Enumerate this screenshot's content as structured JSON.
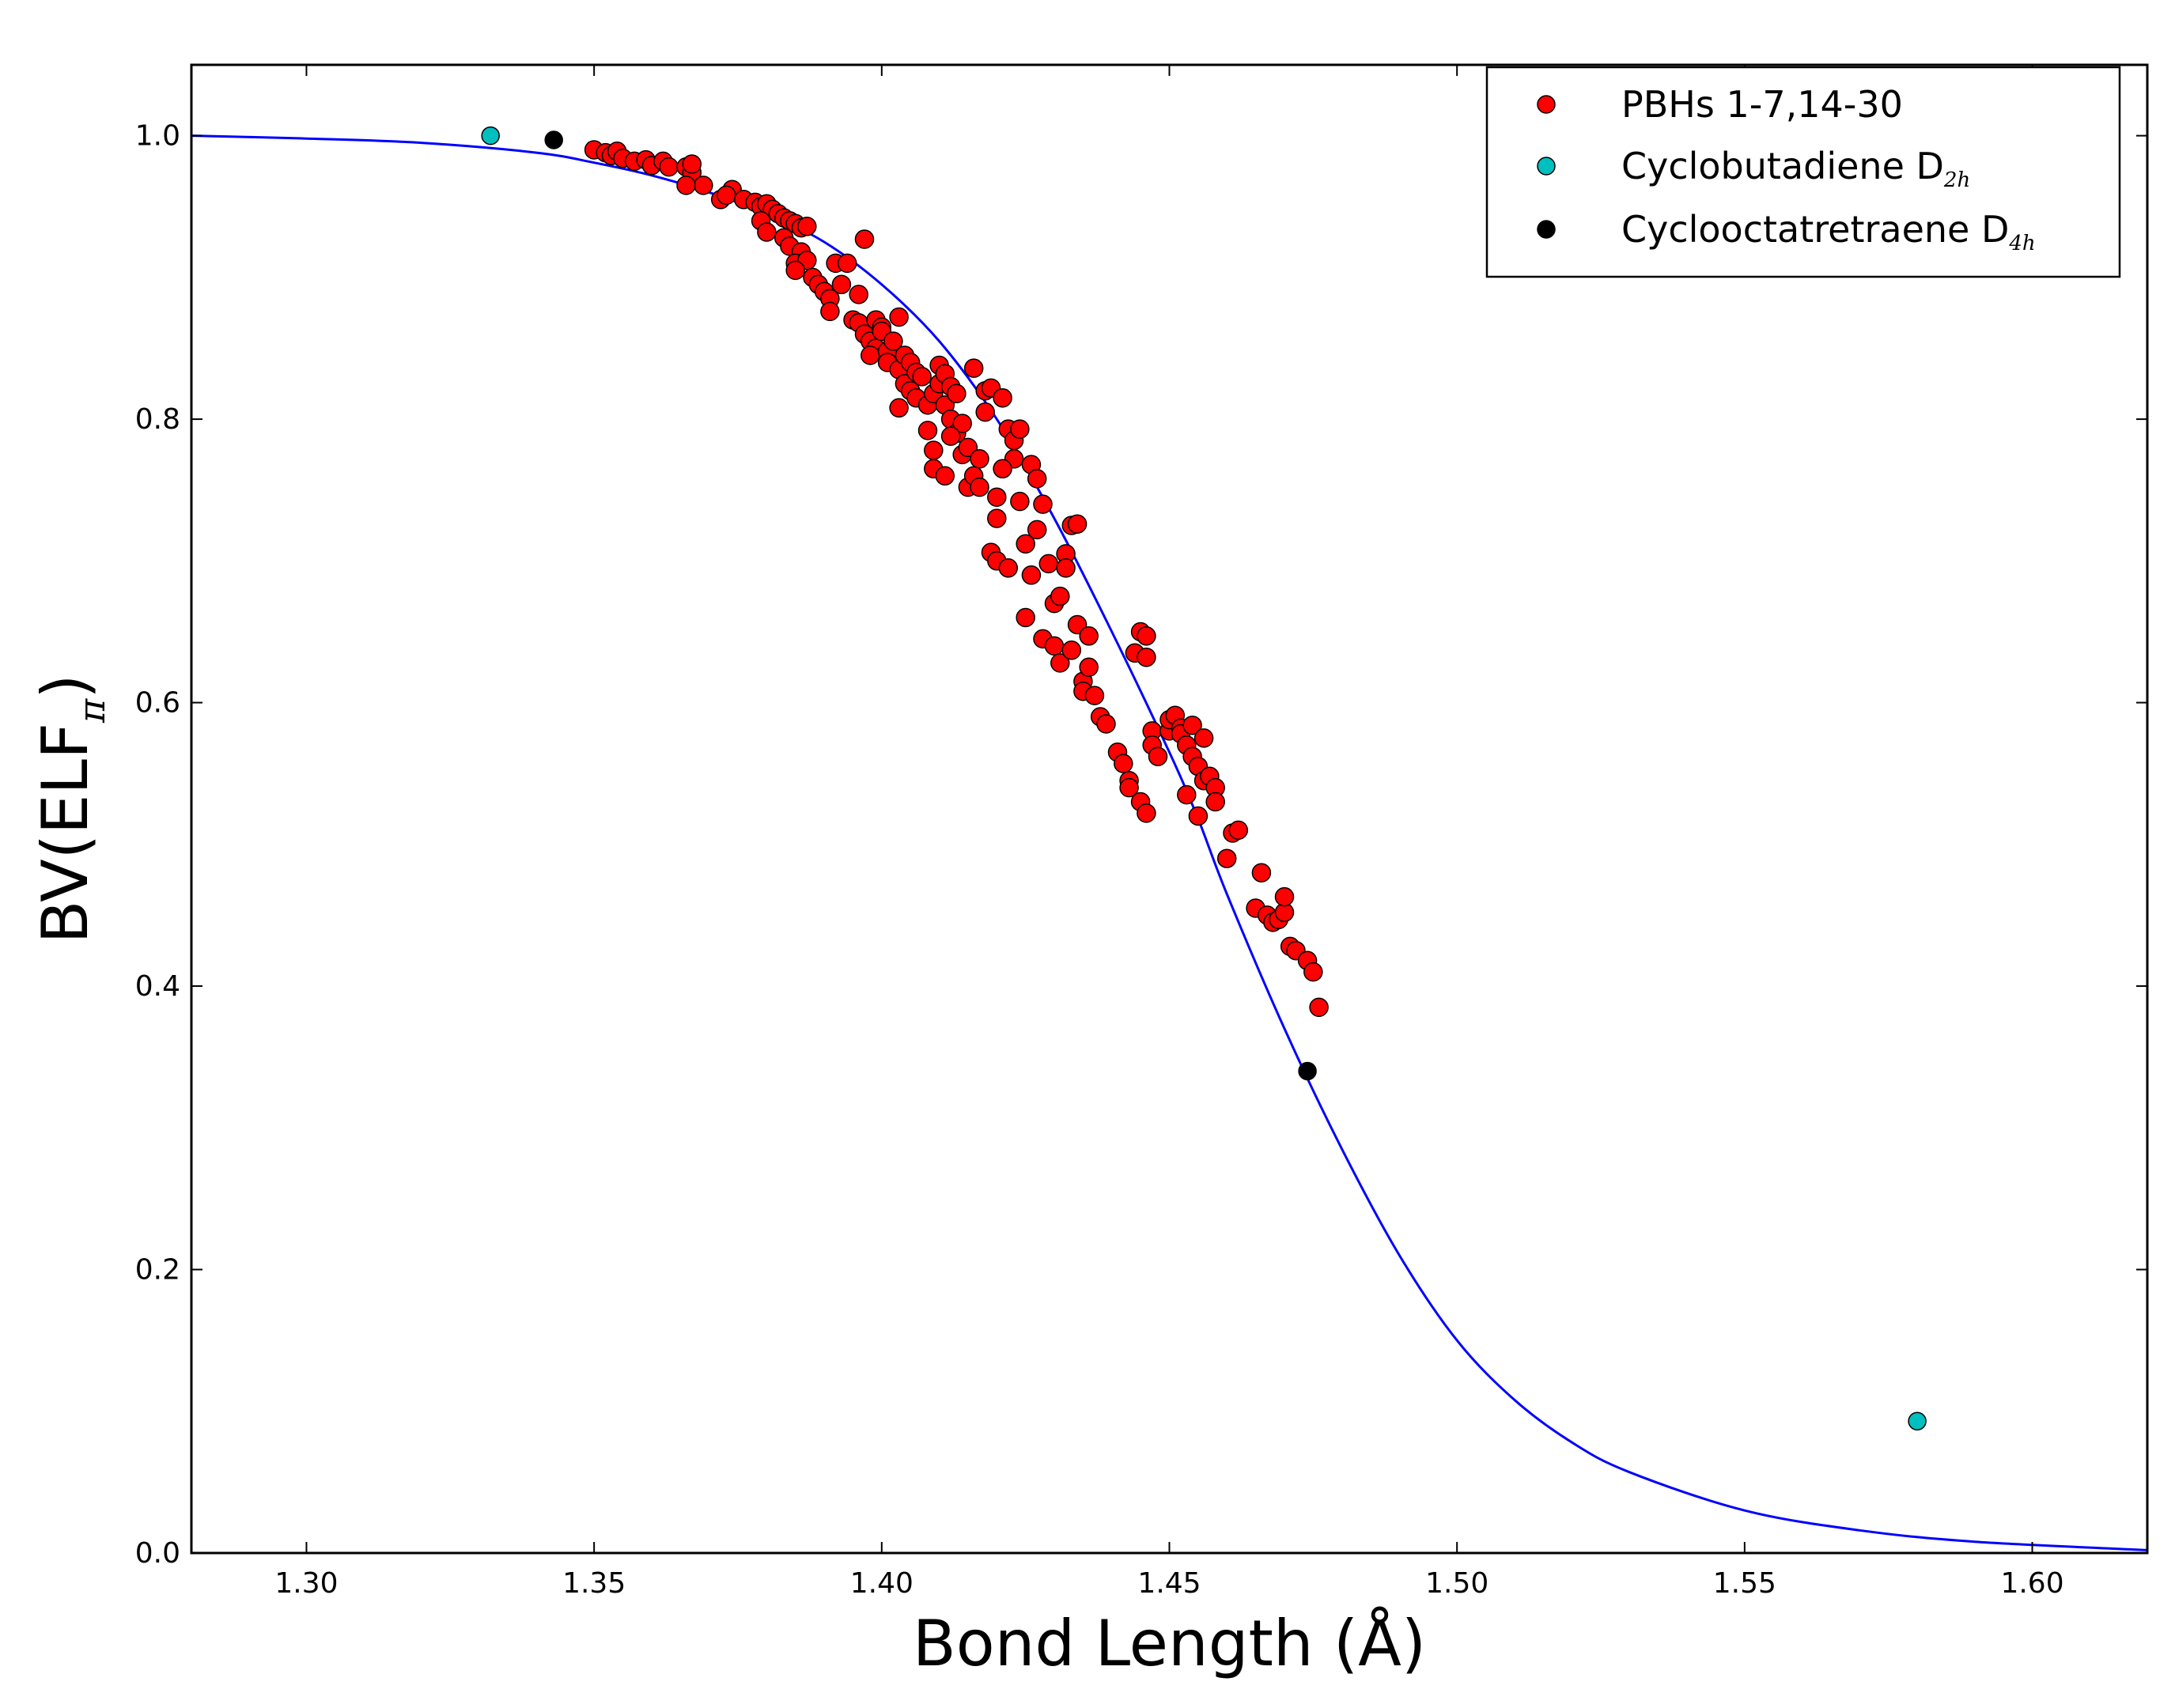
{
  "chart_data": {
    "type": "scatter",
    "xlabel": "Bond Length (Å)",
    "ylabel": "BV(ELF",
    "ylabel_sub": "π",
    "ylabel_close": ")",
    "xlim": [
      1.28,
      1.62
    ],
    "ylim": [
      0.0,
      1.05
    ],
    "x_ticks": [
      "1.30",
      "1.35",
      "1.40",
      "1.45",
      "1.50",
      "1.55",
      "1.60"
    ],
    "y_ticks": [
      "0.0",
      "0.2",
      "0.4",
      "0.6",
      "0.8",
      "1.0"
    ],
    "grid": false,
    "legend_position": "top-right",
    "fit_curve": {
      "color": "#0000ff",
      "x": [
        1.28,
        1.3,
        1.32,
        1.34,
        1.35,
        1.36,
        1.37,
        1.38,
        1.39,
        1.4,
        1.41,
        1.42,
        1.43,
        1.44,
        1.45,
        1.455,
        1.46,
        1.47,
        1.48,
        1.49,
        1.5,
        1.51,
        1.52,
        1.53,
        1.55,
        1.57,
        1.59,
        1.62
      ],
      "y": [
        1.0,
        0.998,
        0.995,
        0.988,
        0.981,
        0.972,
        0.96,
        0.945,
        0.925,
        0.895,
        0.855,
        0.8,
        0.73,
        0.65,
        0.565,
        0.518,
        0.465,
        0.37,
        0.285,
        0.21,
        0.15,
        0.108,
        0.078,
        0.057,
        0.03,
        0.016,
        0.008,
        0.002
      ]
    },
    "series": [
      {
        "name": "PBHs 1-7,14-30",
        "color": "#ff0000",
        "points": [
          [
            1.35,
            0.99
          ],
          [
            1.352,
            0.988
          ],
          [
            1.353,
            0.986
          ],
          [
            1.354,
            0.989
          ],
          [
            1.355,
            0.984
          ],
          [
            1.357,
            0.982
          ],
          [
            1.359,
            0.983
          ],
          [
            1.36,
            0.979
          ],
          [
            1.362,
            0.982
          ],
          [
            1.363,
            0.978
          ],
          [
            1.366,
            0.978
          ],
          [
            1.367,
            0.974
          ],
          [
            1.367,
            0.98
          ],
          [
            1.369,
            0.965
          ],
          [
            1.366,
            0.965
          ],
          [
            1.372,
            0.955
          ],
          [
            1.374,
            0.962
          ],
          [
            1.373,
            0.958
          ],
          [
            1.376,
            0.955
          ],
          [
            1.378,
            0.953
          ],
          [
            1.379,
            0.95
          ],
          [
            1.38,
            0.952
          ],
          [
            1.381,
            0.948
          ],
          [
            1.382,
            0.945
          ],
          [
            1.383,
            0.942
          ],
          [
            1.384,
            0.94
          ],
          [
            1.385,
            0.938
          ],
          [
            1.386,
            0.935
          ],
          [
            1.387,
            0.936
          ],
          [
            1.379,
            0.94
          ],
          [
            1.38,
            0.932
          ],
          [
            1.383,
            0.928
          ],
          [
            1.384,
            0.922
          ],
          [
            1.386,
            0.918
          ],
          [
            1.385,
            0.91
          ],
          [
            1.387,
            0.912
          ],
          [
            1.385,
            0.905
          ],
          [
            1.388,
            0.9
          ],
          [
            1.389,
            0.895
          ],
          [
            1.39,
            0.89
          ],
          [
            1.391,
            0.885
          ],
          [
            1.391,
            0.876
          ],
          [
            1.392,
            0.91
          ],
          [
            1.393,
            0.895
          ],
          [
            1.394,
            0.91
          ],
          [
            1.395,
            0.87
          ],
          [
            1.396,
            0.888
          ],
          [
            1.397,
            0.927
          ],
          [
            1.396,
            0.868
          ],
          [
            1.397,
            0.86
          ],
          [
            1.398,
            0.855
          ],
          [
            1.399,
            0.85
          ],
          [
            1.398,
            0.845
          ],
          [
            1.399,
            0.87
          ],
          [
            1.4,
            0.865
          ],
          [
            1.4,
            0.862
          ],
          [
            1.401,
            0.848
          ],
          [
            1.401,
            0.84
          ],
          [
            1.402,
            0.855
          ],
          [
            1.403,
            0.835
          ],
          [
            1.403,
            0.872
          ],
          [
            1.404,
            0.825
          ],
          [
            1.404,
            0.845
          ],
          [
            1.405,
            0.82
          ],
          [
            1.405,
            0.84
          ],
          [
            1.406,
            0.815
          ],
          [
            1.406,
            0.833
          ],
          [
            1.403,
            0.808
          ],
          [
            1.407,
            0.83
          ],
          [
            1.408,
            0.792
          ],
          [
            1.408,
            0.81
          ],
          [
            1.409,
            0.818
          ],
          [
            1.41,
            0.825
          ],
          [
            1.41,
            0.838
          ],
          [
            1.411,
            0.832
          ],
          [
            1.411,
            0.81
          ],
          [
            1.412,
            0.823
          ],
          [
            1.412,
            0.8
          ],
          [
            1.413,
            0.818
          ],
          [
            1.413,
            0.79
          ],
          [
            1.414,
            0.797
          ],
          [
            1.414,
            0.775
          ],
          [
            1.415,
            0.78
          ],
          [
            1.415,
            0.752
          ],
          [
            1.416,
            0.836
          ],
          [
            1.416,
            0.76
          ],
          [
            1.417,
            0.772
          ],
          [
            1.417,
            0.752
          ],
          [
            1.409,
            0.765
          ],
          [
            1.411,
            0.76
          ],
          [
            1.412,
            0.788
          ],
          [
            1.409,
            0.778
          ],
          [
            1.418,
            0.82
          ],
          [
            1.418,
            0.805
          ],
          [
            1.419,
            0.822
          ],
          [
            1.419,
            0.706
          ],
          [
            1.42,
            0.745
          ],
          [
            1.42,
            0.73
          ],
          [
            1.42,
            0.7
          ],
          [
            1.421,
            0.815
          ],
          [
            1.422,
            0.793
          ],
          [
            1.422,
            0.695
          ],
          [
            1.423,
            0.785
          ],
          [
            1.423,
            0.772
          ],
          [
            1.424,
            0.793
          ],
          [
            1.424,
            0.742
          ],
          [
            1.425,
            0.712
          ],
          [
            1.425,
            0.66
          ],
          [
            1.426,
            0.69
          ],
          [
            1.426,
            0.768
          ],
          [
            1.427,
            0.758
          ],
          [
            1.427,
            0.722
          ],
          [
            1.428,
            0.74
          ],
          [
            1.428,
            0.645
          ],
          [
            1.429,
            0.698
          ],
          [
            1.43,
            0.67
          ],
          [
            1.43,
            0.64
          ],
          [
            1.431,
            0.628
          ],
          [
            1.431,
            0.675
          ],
          [
            1.432,
            0.705
          ],
          [
            1.432,
            0.695
          ],
          [
            1.433,
            0.725
          ],
          [
            1.433,
            0.637
          ],
          [
            1.434,
            0.726
          ],
          [
            1.434,
            0.655
          ],
          [
            1.435,
            0.615
          ],
          [
            1.435,
            0.608
          ],
          [
            1.436,
            0.647
          ],
          [
            1.436,
            0.625
          ],
          [
            1.437,
            0.605
          ],
          [
            1.438,
            0.59
          ],
          [
            1.439,
            0.585
          ],
          [
            1.441,
            0.565
          ],
          [
            1.442,
            0.557
          ],
          [
            1.443,
            0.545
          ],
          [
            1.443,
            0.54
          ],
          [
            1.444,
            0.635
          ],
          [
            1.445,
            0.65
          ],
          [
            1.446,
            0.632
          ],
          [
            1.446,
            0.647
          ],
          [
            1.445,
            0.53
          ],
          [
            1.446,
            0.522
          ],
          [
            1.447,
            0.58
          ],
          [
            1.447,
            0.57
          ],
          [
            1.448,
            0.562
          ],
          [
            1.45,
            0.58
          ],
          [
            1.45,
            0.588
          ],
          [
            1.451,
            0.591
          ],
          [
            1.452,
            0.582
          ],
          [
            1.452,
            0.578
          ],
          [
            1.453,
            0.57
          ],
          [
            1.453,
            0.535
          ],
          [
            1.454,
            0.584
          ],
          [
            1.454,
            0.562
          ],
          [
            1.455,
            0.555
          ],
          [
            1.455,
            0.52
          ],
          [
            1.456,
            0.545
          ],
          [
            1.456,
            0.575
          ],
          [
            1.457,
            0.548
          ],
          [
            1.458,
            0.54
          ],
          [
            1.458,
            0.53
          ],
          [
            1.46,
            0.49
          ],
          [
            1.461,
            0.508
          ],
          [
            1.462,
            0.51
          ],
          [
            1.465,
            0.455
          ],
          [
            1.466,
            0.48
          ],
          [
            1.467,
            0.45
          ],
          [
            1.468,
            0.445
          ],
          [
            1.469,
            0.447
          ],
          [
            1.47,
            0.452
          ],
          [
            1.47,
            0.463
          ],
          [
            1.471,
            0.428
          ],
          [
            1.472,
            0.425
          ],
          [
            1.474,
            0.418
          ],
          [
            1.475,
            0.41
          ],
          [
            1.476,
            0.385
          ],
          [
            1.421,
            0.765
          ]
        ]
      },
      {
        "name": "Cyclobutadiene D",
        "name_sub": "2h",
        "color": "#00bfbf",
        "points": [
          [
            1.332,
            1.0
          ],
          [
            1.58,
            0.093
          ]
        ]
      },
      {
        "name": "Cyclooctatretraene D",
        "name_sub": "4h",
        "color": "#000000",
        "points": [
          [
            1.343,
            0.997
          ],
          [
            1.474,
            0.34
          ]
        ]
      }
    ]
  }
}
